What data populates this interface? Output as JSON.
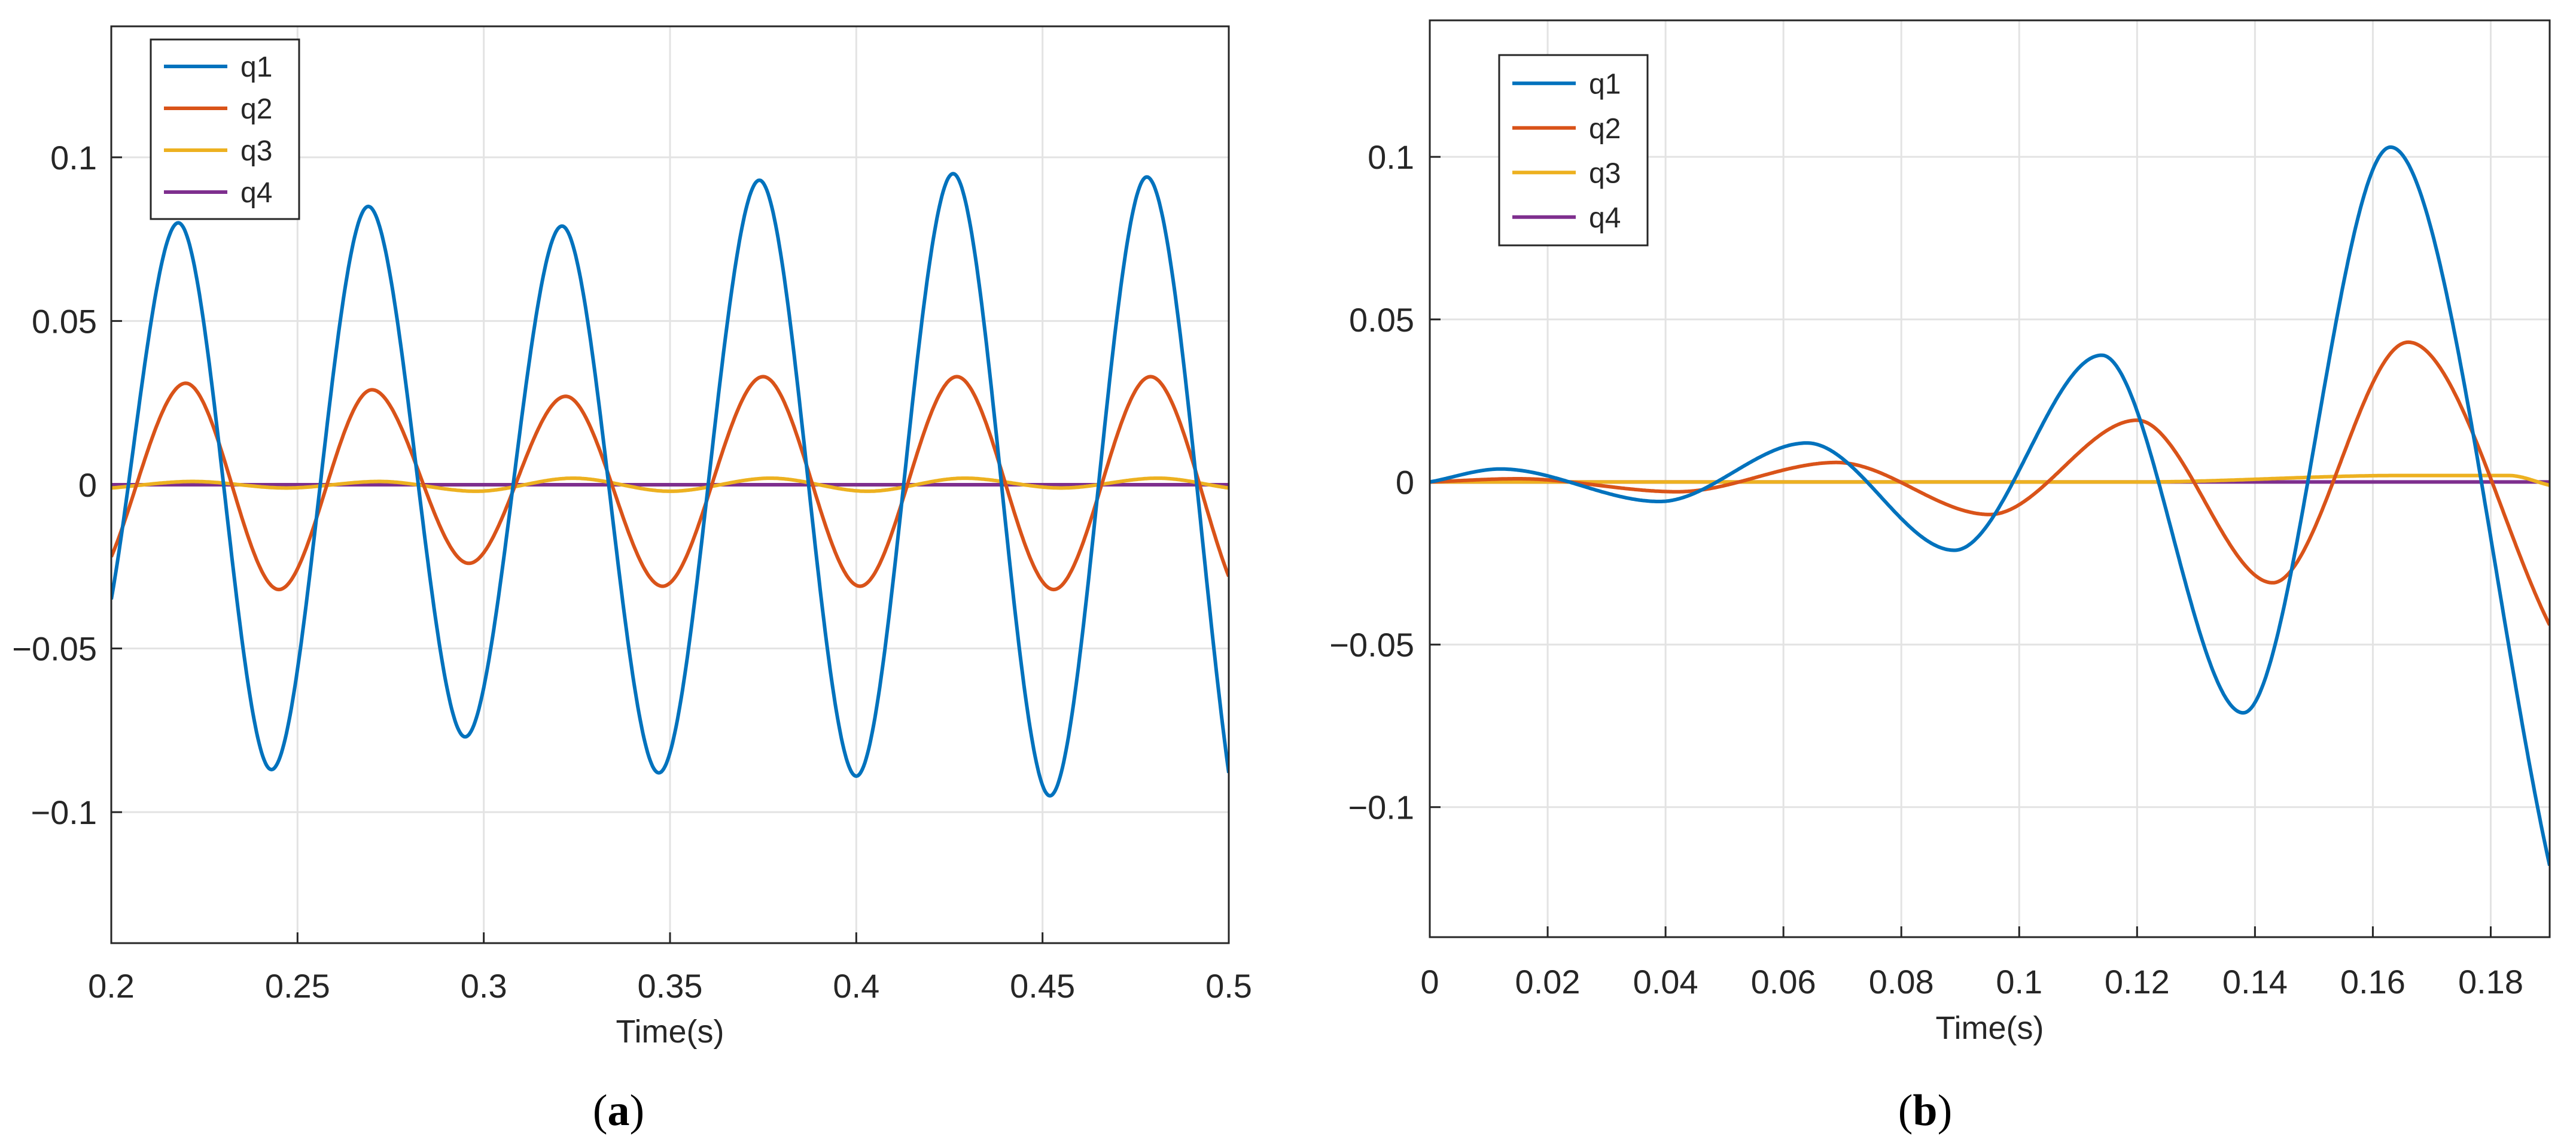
{
  "chart_data": [
    {
      "type": "line",
      "panel_label": "a",
      "xlabel": "Time(s)",
      "ylabel": "",
      "xlim": [
        0.2,
        0.5
      ],
      "ylim": [
        -0.14,
        0.14
      ],
      "xticks": [
        0.2,
        0.25,
        0.3,
        0.35,
        0.4,
        0.45,
        0.5
      ],
      "xtick_labels": [
        "0.2",
        "0.25",
        "0.3",
        "0.35",
        "0.4",
        "0.45",
        "0.5"
      ],
      "yticks": [
        -0.1,
        -0.05,
        0,
        0.05,
        0.1
      ],
      "ytick_labels": [
        "−0.1",
        "−0.05",
        "0",
        "0.05",
        "0.1"
      ],
      "grid": true,
      "legend_position": "top-left",
      "series": [
        {
          "name": "q1",
          "color": "#0072BD",
          "x": [
            0.2,
            0.218,
            0.243,
            0.269,
            0.295,
            0.321,
            0.347,
            0.374,
            0.4,
            0.426,
            0.452,
            0.478,
            0.5
          ],
          "y": [
            -0.035,
            0.08,
            -0.087,
            0.085,
            -0.077,
            0.079,
            -0.088,
            0.093,
            -0.089,
            0.095,
            -0.095,
            0.094,
            -0.088
          ]
        },
        {
          "name": "q2",
          "color": "#D95319",
          "x": [
            0.2,
            0.22,
            0.245,
            0.27,
            0.296,
            0.322,
            0.348,
            0.375,
            0.401,
            0.427,
            0.453,
            0.479,
            0.5
          ],
          "y": [
            -0.022,
            0.031,
            -0.032,
            0.029,
            -0.024,
            0.027,
            -0.031,
            0.033,
            -0.031,
            0.033,
            -0.032,
            0.033,
            -0.028
          ]
        },
        {
          "name": "q3",
          "color": "#EDB120",
          "x": [
            0.2,
            0.222,
            0.247,
            0.272,
            0.298,
            0.324,
            0.35,
            0.377,
            0.403,
            0.429,
            0.455,
            0.481,
            0.5
          ],
          "y": [
            -0.001,
            0.001,
            -0.001,
            0.001,
            -0.002,
            0.002,
            -0.002,
            0.002,
            -0.002,
            0.002,
            -0.001,
            0.002,
            -0.001
          ]
        },
        {
          "name": "q4",
          "color": "#7E2F8E",
          "x": [
            0.2,
            0.5
          ],
          "y": [
            0.0,
            0.0
          ]
        }
      ]
    },
    {
      "type": "line",
      "panel_label": "b",
      "xlabel": "Time(s)",
      "ylabel": "",
      "xlim": [
        0,
        0.19
      ],
      "ylim": [
        -0.14,
        0.142
      ],
      "xticks": [
        0,
        0.02,
        0.04,
        0.06,
        0.08,
        0.1,
        0.12,
        0.14,
        0.16,
        0.18
      ],
      "xtick_labels": [
        "0",
        "0.02",
        "0.04",
        "0.06",
        "0.08",
        "0.1",
        "0.12",
        "0.14",
        "0.16",
        "0.18"
      ],
      "yticks": [
        -0.1,
        -0.05,
        0,
        0.05,
        0.1
      ],
      "ytick_labels": [
        "−0.1",
        "−0.05",
        "0",
        "0.05",
        "0.1"
      ],
      "grid": true,
      "legend_position": "top-left",
      "series": [
        {
          "name": "q1",
          "color": "#0072BD",
          "x": [
            0,
            0.012,
            0.039,
            0.064,
            0.089,
            0.114,
            0.138,
            0.163,
            0.19
          ],
          "y": [
            0.0,
            0.004,
            -0.006,
            0.012,
            -0.021,
            0.039,
            -0.071,
            0.103,
            -0.118
          ]
        },
        {
          "name": "q2",
          "color": "#D95319",
          "x": [
            0,
            0.015,
            0.042,
            0.069,
            0.095,
            0.12,
            0.143,
            0.166,
            0.19
          ],
          "y": [
            0.0,
            0.001,
            -0.003,
            0.006,
            -0.01,
            0.019,
            -0.031,
            0.043,
            -0.044
          ]
        },
        {
          "name": "q3",
          "color": "#EDB120",
          "x": [
            0,
            0.04,
            0.12,
            0.165,
            0.183,
            0.19
          ],
          "y": [
            0.0,
            0.0,
            0.0,
            0.002,
            0.002,
            -0.001
          ]
        },
        {
          "name": "q4",
          "color": "#7E2F8E",
          "x": [
            0,
            0.19
          ],
          "y": [
            0.0,
            0.0
          ]
        }
      ]
    }
  ]
}
